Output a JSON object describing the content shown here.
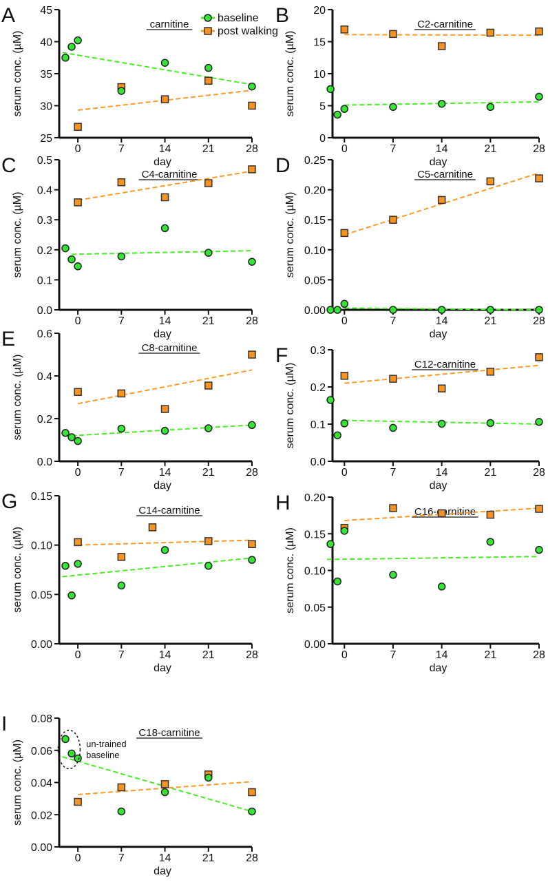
{
  "legend": {
    "baseline": "baseline",
    "post": "post walking"
  },
  "colors": {
    "baseline": "#33e633",
    "post": "#f7931e",
    "baseline_line": "#44ee22",
    "post_line": "#ff9922"
  },
  "chart_data": [
    {
      "letter": "A",
      "type": "scatter",
      "title": "carnitine",
      "xlabel": "day",
      "ylabel": "serum conc. (µM)",
      "ylim": [
        25,
        45
      ],
      "yticks": [
        "25",
        "30",
        "35",
        "40",
        "45"
      ],
      "xticks": [
        "0",
        "7",
        "14",
        "21",
        "28"
      ],
      "legend": "top-right",
      "baseline": {
        "x": [
          -2,
          -1,
          0,
          7,
          14,
          21,
          28
        ],
        "y": [
          37.5,
          39.2,
          40.2,
          32.3,
          36.7,
          35.9,
          33.0
        ],
        "trend": [
          [
            -2.5,
            38.3
          ],
          [
            28,
            33.3
          ]
        ]
      },
      "post": {
        "x": [
          0,
          7,
          14,
          21,
          28
        ],
        "y": [
          26.7,
          32.9,
          31.0,
          33.9,
          30.0
        ],
        "trend": [
          [
            0,
            29.3
          ],
          [
            28,
            32.4
          ]
        ]
      }
    },
    {
      "letter": "B",
      "type": "scatter",
      "title": "C2-carnitine",
      "xlabel": "day",
      "ylabel": "serum conc. (µM)",
      "ylim": [
        0,
        20
      ],
      "yticks": [
        "0",
        "5",
        "10",
        "15",
        "20"
      ],
      "xticks": [
        "0",
        "7",
        "14",
        "21",
        "28"
      ],
      "baseline": {
        "x": [
          -2,
          -1,
          0,
          7,
          14,
          21,
          28
        ],
        "y": [
          7.6,
          3.6,
          4.5,
          4.8,
          5.3,
          4.8,
          6.4
        ],
        "trend": [
          [
            0,
            5.1
          ],
          [
            28,
            5.6
          ]
        ]
      },
      "post": {
        "x": [
          0,
          7,
          14,
          21,
          28
        ],
        "y": [
          16.9,
          16.2,
          14.3,
          16.4,
          16.6
        ],
        "trend": [
          [
            0,
            16.1
          ],
          [
            28,
            16.0
          ]
        ]
      }
    },
    {
      "letter": "C",
      "type": "scatter",
      "title": "C4-carnitine",
      "xlabel": "day",
      "ylabel": "serum conc. (µM)",
      "ylim": [
        0,
        0.5
      ],
      "yticks": [
        "0.0",
        "0.1",
        "0.2",
        "0.3",
        "0.4",
        "0.5"
      ],
      "xticks": [
        "0",
        "7",
        "14",
        "21",
        "28"
      ],
      "baseline": {
        "x": [
          -2,
          -1,
          0,
          7,
          14,
          21,
          28
        ],
        "y": [
          0.205,
          0.168,
          0.145,
          0.178,
          0.272,
          0.19,
          0.16
        ],
        "trend": [
          [
            -1,
            0.185
          ],
          [
            28,
            0.197
          ]
        ]
      },
      "post": {
        "x": [
          0,
          7,
          14,
          21,
          28
        ],
        "y": [
          0.358,
          0.425,
          0.375,
          0.422,
          0.468
        ],
        "trend": [
          [
            0,
            0.365
          ],
          [
            28,
            0.462
          ]
        ]
      }
    },
    {
      "letter": "D",
      "type": "scatter",
      "title": "C5-carnitine",
      "xlabel": "day",
      "ylabel": "serum conc. (µM)",
      "ylim": [
        0,
        0.25
      ],
      "yticks": [
        "0.00",
        "0.05",
        "0.10",
        "0.15",
        "0.20",
        "0.25"
      ],
      "xticks": [
        "0",
        "7",
        "14",
        "21",
        "28"
      ],
      "baseline": {
        "x": [
          -2,
          -1,
          0,
          7,
          14,
          21,
          28
        ],
        "y": [
          0,
          0,
          0.01,
          0,
          0,
          0,
          0
        ],
        "trend": [
          [
            0,
            0.003
          ],
          [
            28,
            0.0
          ]
        ]
      },
      "post": {
        "x": [
          0,
          7,
          14,
          21,
          28
        ],
        "y": [
          0.128,
          0.15,
          0.183,
          0.214,
          0.219
        ],
        "trend": [
          [
            0,
            0.125
          ],
          [
            28,
            0.228
          ]
        ]
      }
    },
    {
      "letter": "E",
      "type": "scatter",
      "title": "C8-carnitine",
      "xlabel": "day",
      "ylabel": "serum conc. (µM)",
      "ylim": [
        0,
        0.6
      ],
      "yticks": [
        "0.0",
        "0.2",
        "0.4",
        "0.6"
      ],
      "xticks": [
        "0",
        "7",
        "14",
        "21",
        "28"
      ],
      "baseline": {
        "x": [
          -2,
          -1,
          0,
          7,
          14,
          21,
          28
        ],
        "y": [
          0.133,
          0.113,
          0.095,
          0.153,
          0.143,
          0.155,
          0.17
        ],
        "trend": [
          [
            -1,
            0.12
          ],
          [
            28,
            0.17
          ]
        ]
      },
      "post": {
        "x": [
          0,
          7,
          14,
          21,
          28
        ],
        "y": [
          0.325,
          0.318,
          0.245,
          0.355,
          0.5
        ],
        "trend": [
          [
            0,
            0.27
          ],
          [
            28,
            0.428
          ]
        ]
      }
    },
    {
      "letter": "F",
      "type": "scatter",
      "title": "C12-carnitine",
      "xlabel": "day",
      "ylabel": "serum conc. (µM)",
      "ylim": [
        0,
        0.3
      ],
      "yticks": [
        "0.0",
        "0.1",
        "0.2",
        "0.3"
      ],
      "xticks": [
        "0",
        "7",
        "14",
        "21",
        "28"
      ],
      "baseline": {
        "x": [
          -2,
          -1,
          0,
          7,
          14,
          21,
          28
        ],
        "y": [
          0.165,
          0.07,
          0.102,
          0.09,
          0.101,
          0.103,
          0.106
        ],
        "trend": [
          [
            0,
            0.11
          ],
          [
            28,
            0.1
          ]
        ]
      },
      "post": {
        "x": [
          0,
          7,
          14,
          21,
          28
        ],
        "y": [
          0.23,
          0.222,
          0.196,
          0.241,
          0.28
        ],
        "trend": [
          [
            0,
            0.21
          ],
          [
            28,
            0.258
          ]
        ]
      }
    },
    {
      "letter": "G",
      "type": "scatter",
      "title": "C14-carnitine",
      "xlabel": "day",
      "ylabel": "serum conc. (µM)",
      "ylim": [
        0,
        0.15
      ],
      "yticks": [
        "0.00",
        "0.05",
        "0.10",
        "0.15"
      ],
      "xticks": [
        "0",
        "7",
        "14",
        "21",
        "28"
      ],
      "baseline": {
        "x": [
          -2,
          -1,
          0,
          7,
          14,
          21,
          28
        ],
        "y": [
          0.079,
          0.049,
          0.081,
          0.059,
          0.095,
          0.079,
          0.085
        ],
        "trend": [
          [
            -2.5,
            0.068
          ],
          [
            28,
            0.087
          ]
        ]
      },
      "post": {
        "x": [
          0,
          7,
          12,
          21,
          28
        ],
        "y": [
          0.103,
          0.088,
          0.118,
          0.104,
          0.101
        ],
        "trend": [
          [
            0,
            0.1
          ],
          [
            28,
            0.105
          ]
        ]
      }
    },
    {
      "letter": "H",
      "type": "scatter",
      "title": "C16-carnitine",
      "xlabel": "day",
      "ylabel": "serum conc. (µM)",
      "ylim": [
        0,
        0.2
      ],
      "yticks": [
        "0.00",
        "0.05",
        "0.10",
        "0.15",
        "0.20"
      ],
      "xticks": [
        "0",
        "7",
        "14",
        "21",
        "28"
      ],
      "baseline": {
        "x": [
          -2,
          -1,
          0,
          7,
          14,
          21,
          28
        ],
        "y": [
          0.136,
          0.085,
          0.154,
          0.094,
          0.078,
          0.139,
          0.128
        ],
        "trend": [
          [
            -2.5,
            0.115
          ],
          [
            28,
            0.119
          ]
        ]
      },
      "post": {
        "x": [
          0,
          7,
          14,
          21,
          28
        ],
        "y": [
          0.158,
          0.185,
          0.178,
          0.176,
          0.184
        ],
        "trend": [
          [
            0,
            0.168
          ],
          [
            28,
            0.185
          ]
        ]
      }
    },
    {
      "letter": "I",
      "type": "scatter",
      "title": "C18-carnitine",
      "xlabel": "day",
      "ylabel": "serum conc. (µM)",
      "ylim": [
        0,
        0.08
      ],
      "yticks": [
        "0.00",
        "0.02",
        "0.04",
        "0.06",
        "0.08"
      ],
      "xticks": [
        "0",
        "7",
        "14",
        "21",
        "28"
      ],
      "annotation": [
        "un-trained",
        "baseline"
      ],
      "baseline": {
        "x": [
          -2,
          -1,
          0,
          7,
          14,
          21,
          28
        ],
        "y": [
          0.067,
          0.058,
          0.055,
          0.022,
          0.034,
          0.043,
          0.022
        ],
        "trend": [
          [
            -2.5,
            0.056
          ],
          [
            28,
            0.022
          ]
        ]
      },
      "post": {
        "x": [
          0,
          7,
          14,
          21,
          28
        ],
        "y": [
          0.028,
          0.037,
          0.039,
          0.045,
          0.034
        ],
        "trend": [
          [
            0,
            0.0325
          ],
          [
            28,
            0.0405
          ]
        ]
      }
    }
  ]
}
